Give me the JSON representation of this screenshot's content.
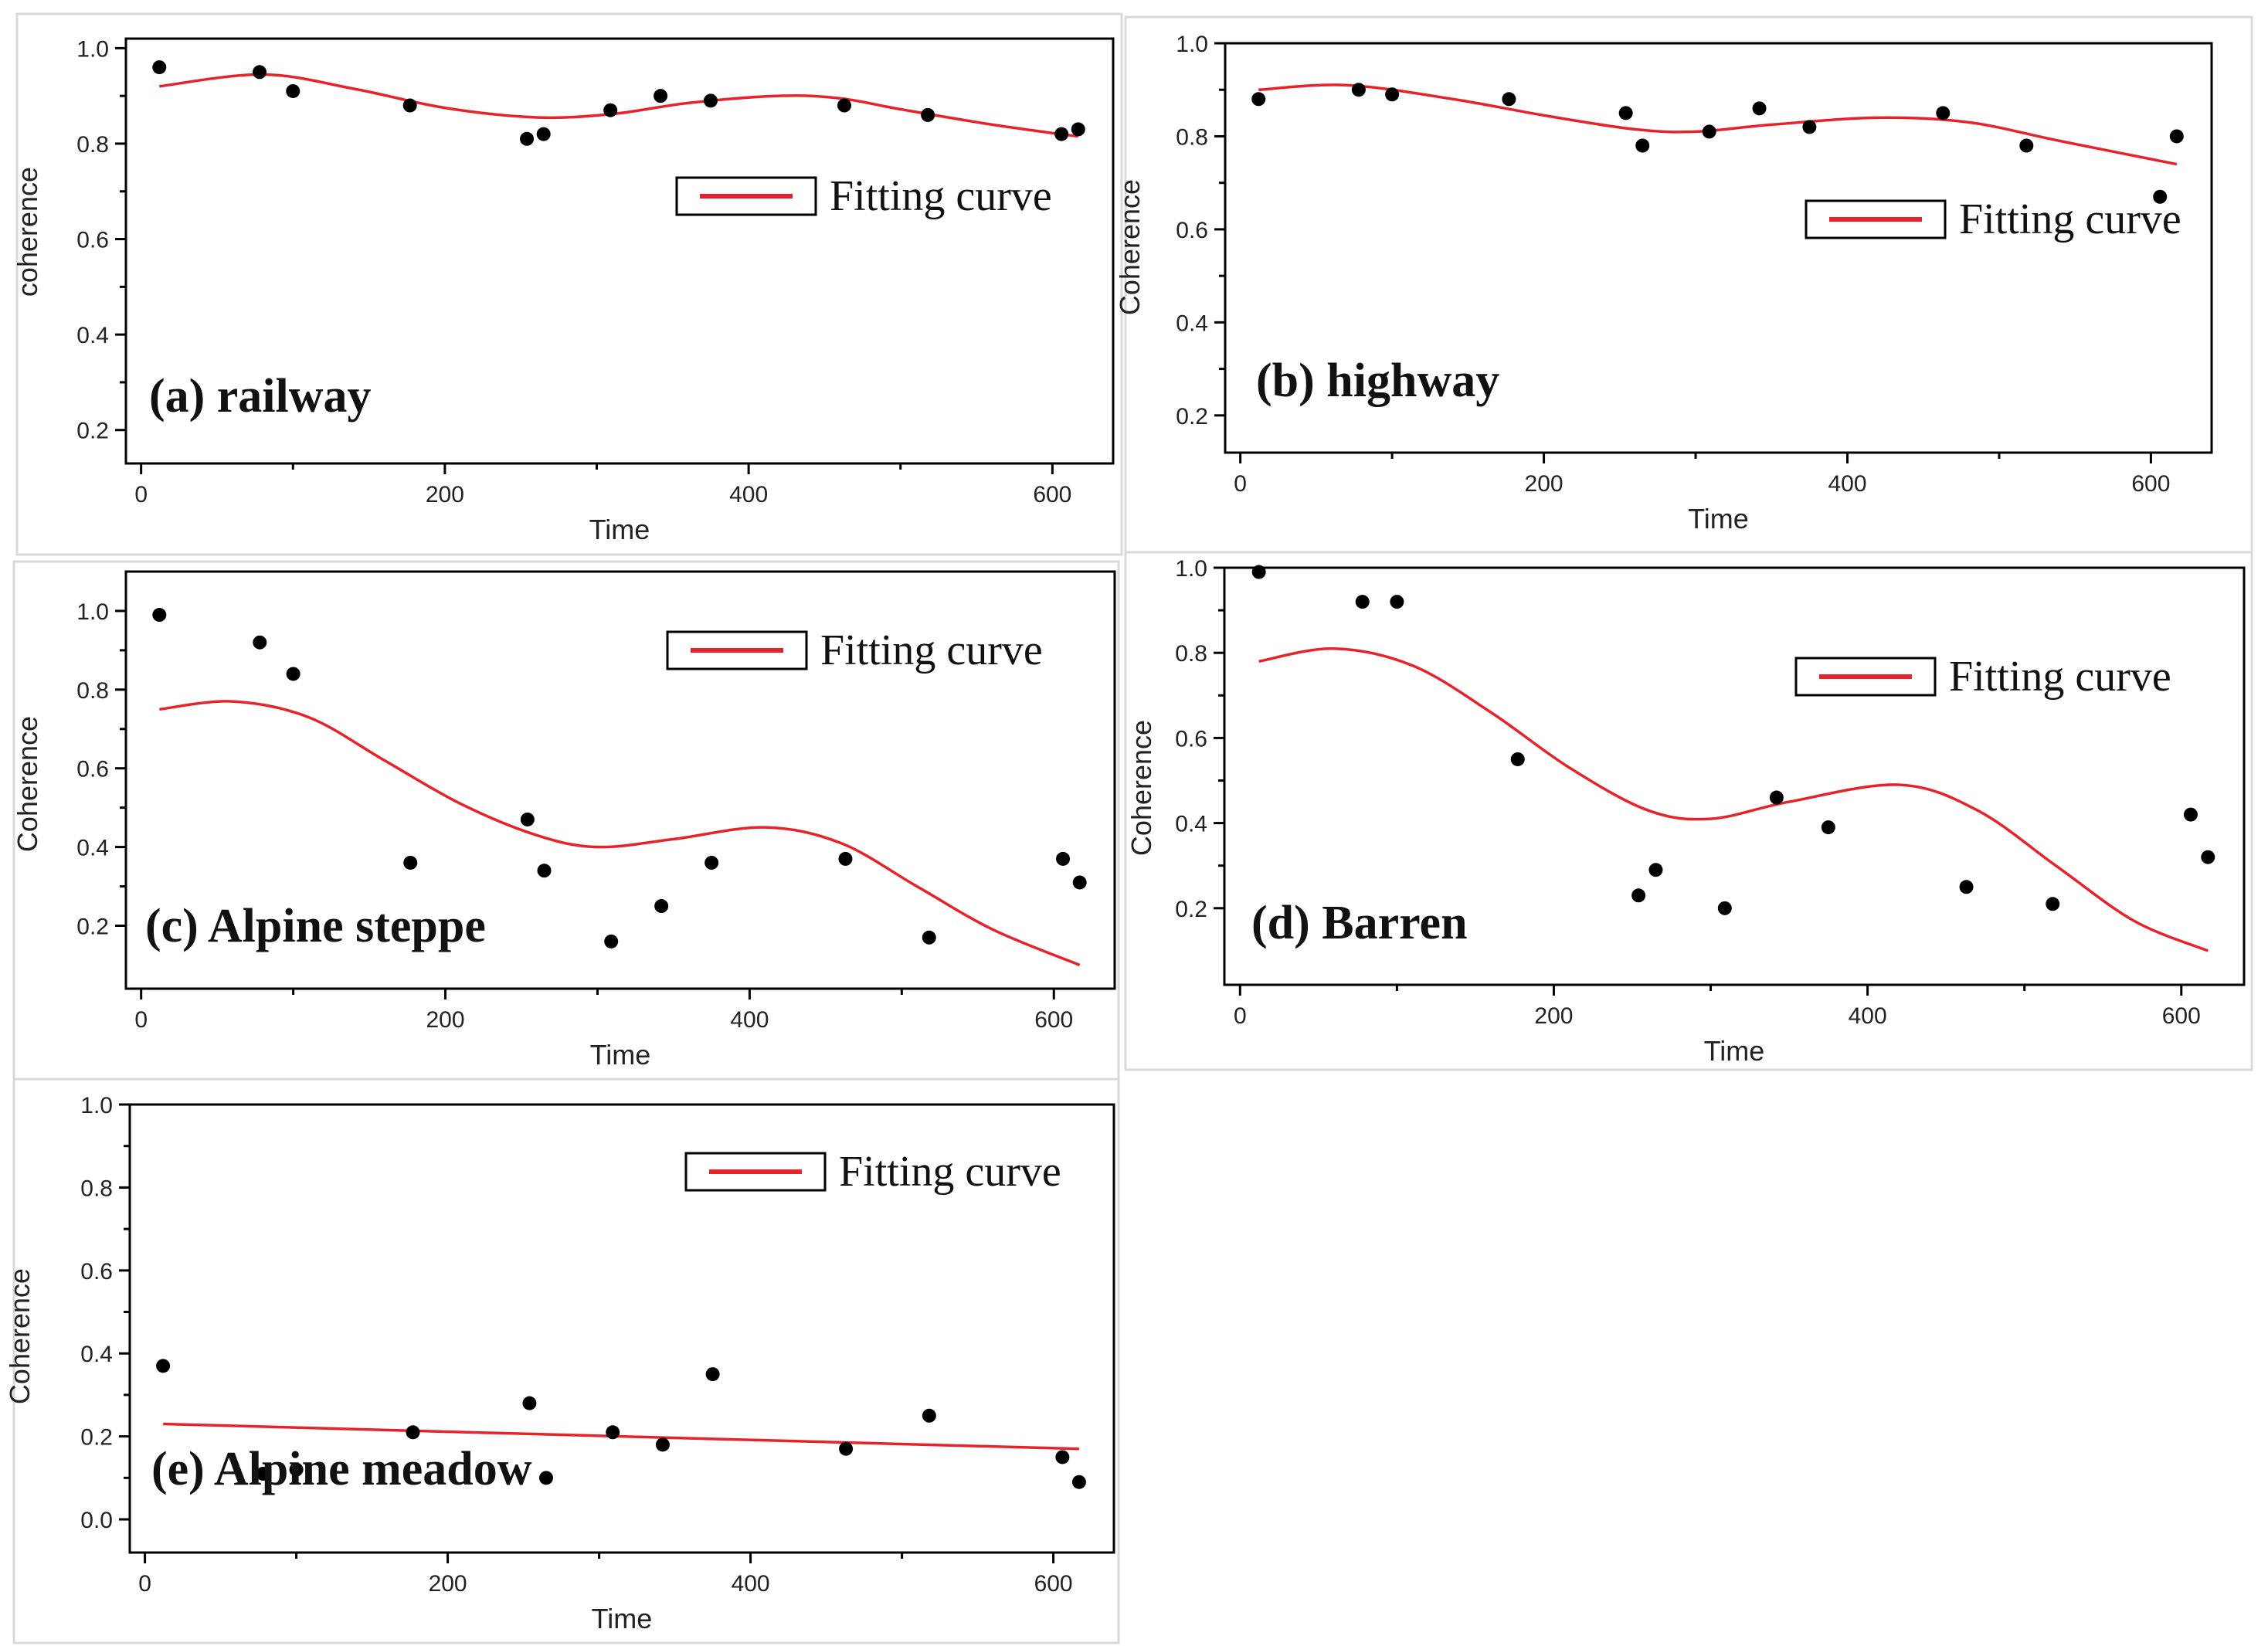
{
  "figure": {
    "legend_label": "Fitting curve",
    "x_axis_label": "Time",
    "fit_color": "#e8222a",
    "point_color": "#000000"
  },
  "chart_data": [
    {
      "type": "scatter",
      "panel_label": "(a) railway",
      "xlabel": "Time",
      "ylabel": "coherence",
      "xlim": [
        -10,
        640
      ],
      "ylim": [
        0.13,
        1.02
      ],
      "xticks": [
        0,
        200,
        400,
        600
      ],
      "yticks": [
        0.2,
        0.4,
        0.6,
        0.8,
        1.0
      ],
      "ytick_labels": [
        "0.2",
        "0.4",
        "0.6",
        "0.8",
        "1.0"
      ],
      "legend": "Fitting curve",
      "legend_position": "right",
      "points": {
        "x": [
          12,
          78,
          100,
          177,
          254,
          265,
          309,
          342,
          375,
          463,
          518,
          606,
          617
        ],
        "y": [
          0.96,
          0.95,
          0.91,
          0.88,
          0.81,
          0.82,
          0.87,
          0.9,
          0.89,
          0.88,
          0.86,
          0.82,
          0.83
        ]
      },
      "fit": {
        "x": [
          12,
          80,
          140,
          200,
          260,
          310,
          360,
          420,
          460,
          500,
          560,
          617
        ],
        "y": [
          0.92,
          0.945,
          0.915,
          0.875,
          0.855,
          0.862,
          0.885,
          0.9,
          0.895,
          0.872,
          0.84,
          0.815
        ]
      }
    },
    {
      "type": "scatter",
      "panel_label": "(b) highway",
      "xlabel": "Time",
      "ylabel": "Coherence",
      "xlim": [
        -10,
        640
      ],
      "ylim": [
        0.12,
        1.0
      ],
      "xticks": [
        0,
        200,
        400,
        600
      ],
      "yticks": [
        0.2,
        0.4,
        0.6,
        0.8,
        1.0
      ],
      "ytick_labels": [
        "0.2",
        "0.4",
        "0.6",
        "0.8",
        "1.0"
      ],
      "legend": "Fitting curve",
      "legend_position": "right",
      "points": {
        "x": [
          12,
          78,
          100,
          177,
          254,
          265,
          309,
          342,
          375,
          463,
          518,
          606,
          617
        ],
        "y": [
          0.88,
          0.9,
          0.89,
          0.88,
          0.85,
          0.78,
          0.81,
          0.86,
          0.82,
          0.85,
          0.78,
          0.67,
          0.8
        ]
      },
      "fit": {
        "x": [
          12,
          70,
          140,
          200,
          260,
          300,
          350,
          420,
          480,
          540,
          617
        ],
        "y": [
          0.9,
          0.91,
          0.88,
          0.845,
          0.815,
          0.81,
          0.825,
          0.84,
          0.83,
          0.79,
          0.74
        ]
      }
    },
    {
      "type": "scatter",
      "panel_label": "(c) Alpine steppe",
      "xlabel": "Time",
      "ylabel": "Coherence",
      "xlim": [
        -10,
        640
      ],
      "ylim": [
        0.04,
        1.1
      ],
      "xticks": [
        0,
        200,
        400,
        600
      ],
      "yticks": [
        0.2,
        0.4,
        0.6,
        0.8,
        1.0
      ],
      "ytick_labels": [
        "0.2",
        "0.4",
        "0.6",
        "0.8",
        "1.0"
      ],
      "legend": "Fitting curve",
      "legend_position": "right",
      "points": {
        "x": [
          12,
          78,
          100,
          177,
          254,
          265,
          309,
          342,
          375,
          463,
          518,
          606,
          617
        ],
        "y": [
          0.99,
          0.92,
          0.84,
          0.36,
          0.47,
          0.34,
          0.16,
          0.25,
          0.36,
          0.37,
          0.17,
          0.37,
          0.31
        ]
      },
      "fit": {
        "x": [
          12,
          60,
          110,
          160,
          210,
          260,
          300,
          350,
          410,
          460,
          510,
          560,
          617
        ],
        "y": [
          0.75,
          0.77,
          0.73,
          0.62,
          0.51,
          0.43,
          0.4,
          0.42,
          0.45,
          0.41,
          0.3,
          0.19,
          0.1
        ]
      }
    },
    {
      "type": "scatter",
      "panel_label": "(d) Barren",
      "xlabel": "Time",
      "ylabel": "Coherence",
      "xlim": [
        -10,
        640
      ],
      "ylim": [
        0.02,
        1.0
      ],
      "xticks": [
        0,
        200,
        400,
        600
      ],
      "yticks": [
        0.2,
        0.4,
        0.6,
        0.8,
        1.0
      ],
      "ytick_labels": [
        "0.2",
        "0.4",
        "0.6",
        "0.8",
        "1.0"
      ],
      "legend": "Fitting curve",
      "legend_position": "right",
      "points": {
        "x": [
          12,
          78,
          100,
          177,
          254,
          265,
          309,
          342,
          375,
          463,
          518,
          606,
          617
        ],
        "y": [
          0.99,
          0.92,
          0.92,
          0.55,
          0.23,
          0.29,
          0.2,
          0.46,
          0.39,
          0.25,
          0.21,
          0.42,
          0.32
        ]
      },
      "fit": {
        "x": [
          12,
          60,
          110,
          160,
          210,
          260,
          300,
          350,
          420,
          470,
          520,
          570,
          617
        ],
        "y": [
          0.78,
          0.81,
          0.77,
          0.66,
          0.53,
          0.43,
          0.41,
          0.45,
          0.49,
          0.43,
          0.3,
          0.17,
          0.1
        ]
      }
    },
    {
      "type": "scatter",
      "panel_label": "(e) Alpine meadow",
      "xlabel": "Time",
      "ylabel": "Coherence",
      "xlim": [
        -10,
        640
      ],
      "ylim": [
        -0.08,
        1.0
      ],
      "xticks": [
        0,
        200,
        400,
        600
      ],
      "yticks": [
        0.0,
        0.2,
        0.4,
        0.6,
        0.8,
        1.0
      ],
      "ytick_labels": [
        "0.0",
        "0.2",
        "0.4",
        "0.6",
        "0.8",
        "1.0"
      ],
      "legend": "Fitting curve",
      "legend_position": "right",
      "points": {
        "x": [
          12,
          78,
          100,
          177,
          254,
          265,
          309,
          342,
          375,
          463,
          518,
          606,
          617
        ],
        "y": [
          0.37,
          0.11,
          0.12,
          0.21,
          0.28,
          0.1,
          0.21,
          0.18,
          0.35,
          0.17,
          0.25,
          0.15,
          0.09
        ]
      },
      "fit": {
        "x": [
          12,
          617
        ],
        "y": [
          0.23,
          0.17
        ]
      }
    }
  ]
}
